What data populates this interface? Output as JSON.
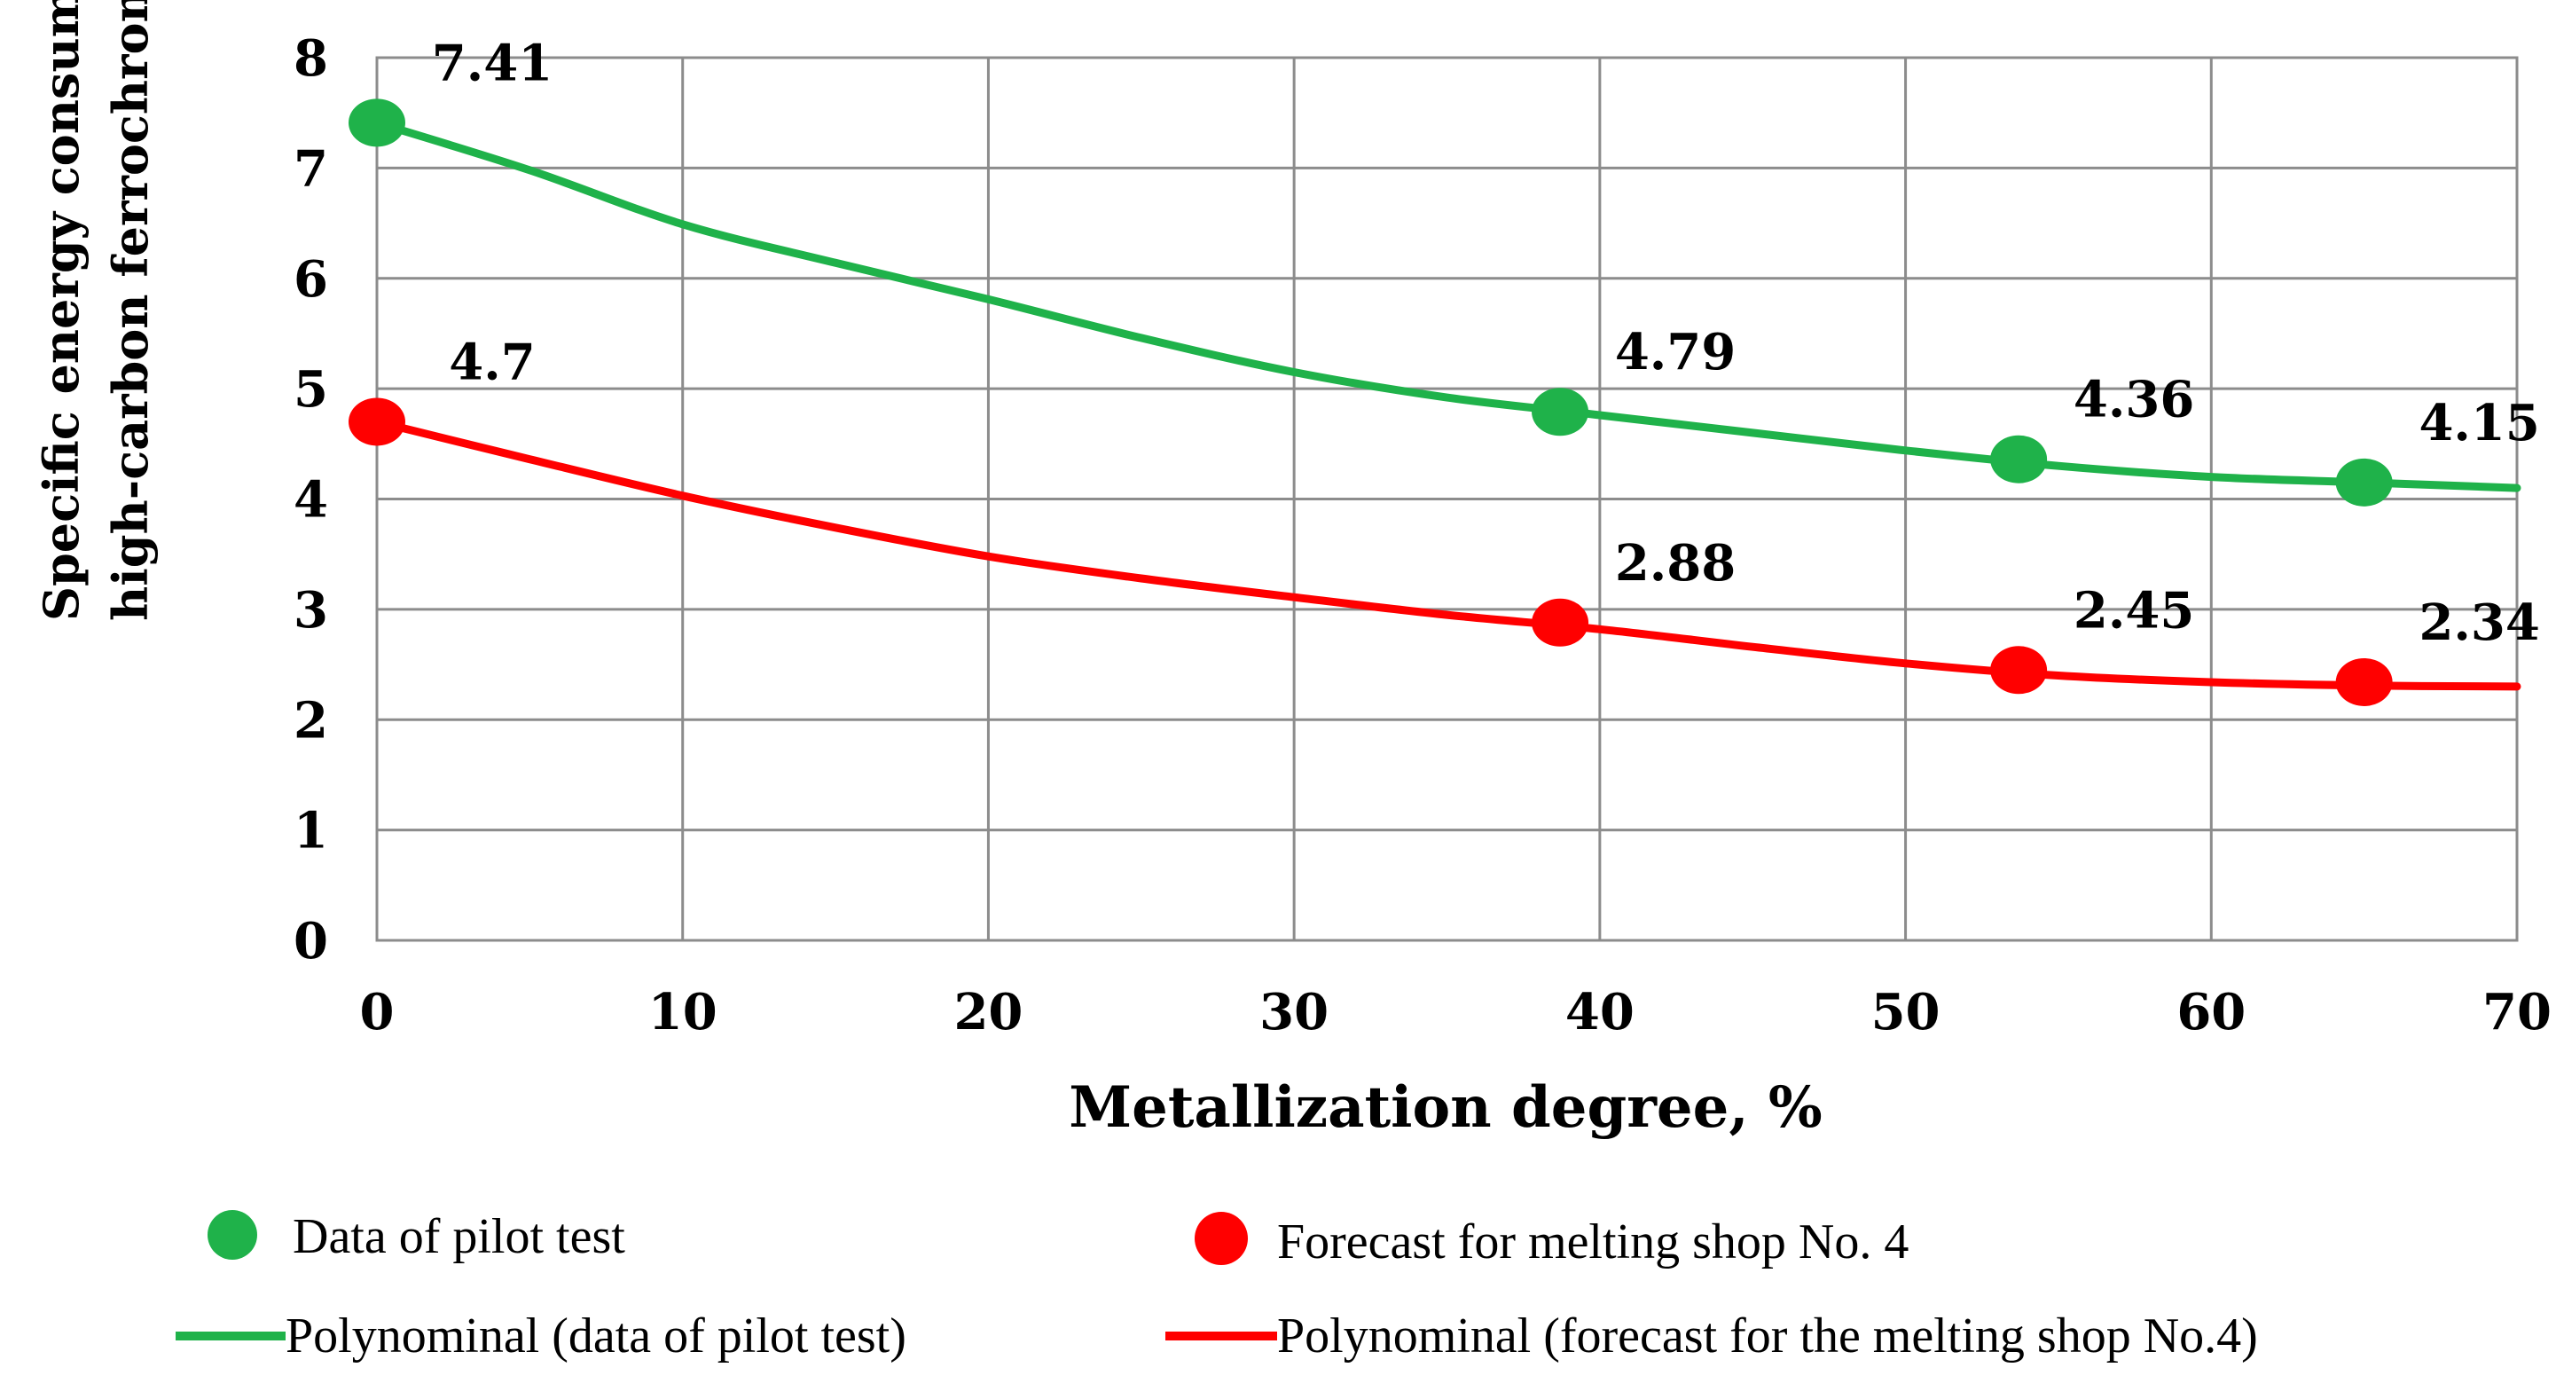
{
  "chart_data": {
    "type": "scatter",
    "xlabel": "Metallization degree, %",
    "ylabel_lines": [
      "Specific energy consumption MW·h/t  of",
      "high-carbon ferrochromium"
    ],
    "xlim": [
      0,
      70
    ],
    "ylim": [
      0,
      8
    ],
    "x_ticks": [
      0,
      10,
      20,
      30,
      40,
      50,
      60,
      70
    ],
    "y_ticks": [
      0,
      1,
      2,
      3,
      4,
      5,
      6,
      7,
      8
    ],
    "grid": true,
    "series": [
      {
        "name": "Data of pilot  test",
        "kind": "points",
        "color": "#1fb24a",
        "x": [
          0,
          38.7,
          53.7,
          65
        ],
        "values": [
          7.41,
          4.79,
          4.36,
          4.15
        ],
        "labels": [
          "7.41",
          "4.79",
          "4.36",
          "4.15"
        ]
      },
      {
        "name": "Forecast for melting  shop No. 4",
        "kind": "points",
        "color": "#ff0000",
        "x": [
          0,
          38.7,
          53.7,
          65
        ],
        "values": [
          4.7,
          2.88,
          2.45,
          2.34
        ],
        "labels": [
          "4.7",
          "2.88",
          "2.45",
          "2.34"
        ]
      },
      {
        "name": "Polynominal (data of pilot test)",
        "kind": "trend",
        "color": "#1fb24a",
        "x": [
          0,
          5,
          10,
          15,
          20,
          25,
          30,
          35,
          40,
          45,
          50,
          55,
          60,
          65,
          70
        ],
        "values": [
          7.41,
          6.98,
          6.49,
          6.14,
          5.81,
          5.46,
          5.15,
          4.92,
          4.76,
          4.6,
          4.44,
          4.3,
          4.2,
          4.15,
          4.1
        ]
      },
      {
        "name": "Polynominal (forecast for the melting shop No.4)",
        "kind": "trend",
        "color": "#ff0000",
        "x": [
          0,
          5,
          10,
          15,
          20,
          25,
          30,
          35,
          40,
          45,
          50,
          55,
          60,
          65,
          70
        ],
        "values": [
          4.7,
          4.36,
          4.03,
          3.74,
          3.48,
          3.28,
          3.11,
          2.95,
          2.82,
          2.66,
          2.51,
          2.4,
          2.34,
          2.31,
          2.3
        ]
      }
    ],
    "legend": [
      {
        "label": "Data of pilot  test",
        "symbol": "dot",
        "color": "#1fb24a"
      },
      {
        "label": "Forecast for melting  shop No. 4",
        "symbol": "dot",
        "color": "#ff0000"
      },
      {
        "label": "Polynominal (data of pilot test)",
        "symbol": "line",
        "color": "#1fb24a"
      },
      {
        "label": "Polynominal (forecast for the melting shop No.4)",
        "symbol": "line",
        "color": "#ff0000"
      }
    ],
    "legend_position": "bottom"
  }
}
